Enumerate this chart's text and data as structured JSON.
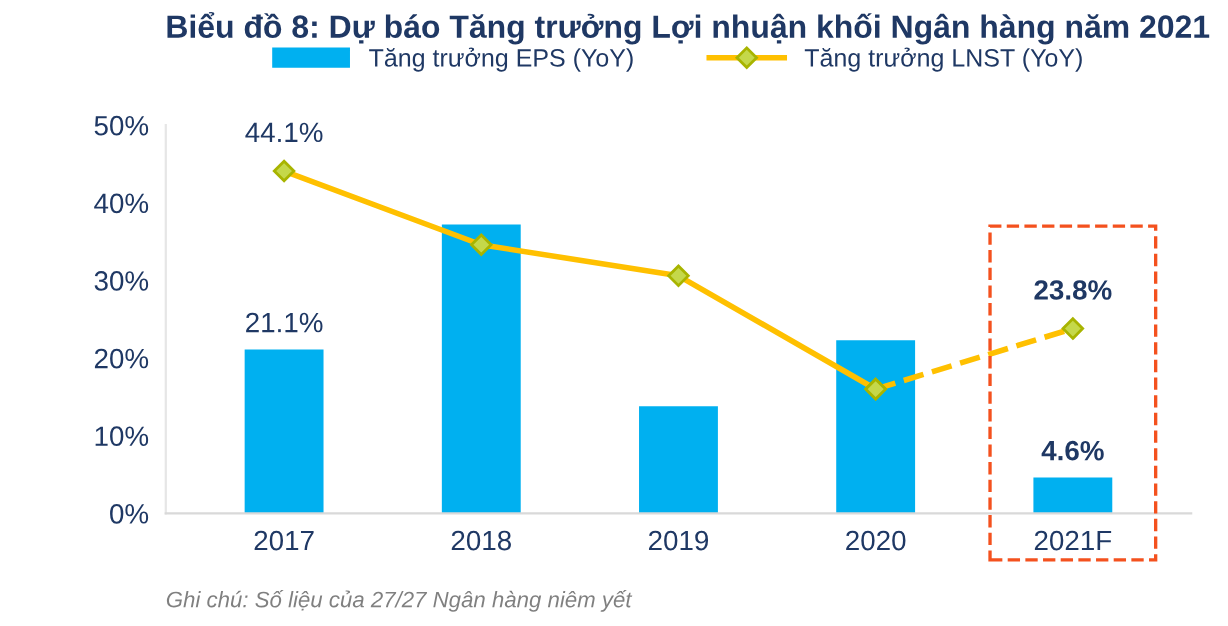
{
  "chart_data": {
    "type": "bar",
    "title": "Biểu đồ 8: Dự báo Tăng trưởng Lợi nhuận khối Ngân hàng năm 2021",
    "categories": [
      "2017",
      "2018",
      "2019",
      "2020",
      "2021F"
    ],
    "series": [
      {
        "name": "Tăng trưởng EPS (YoY)",
        "color": "#00b0f0",
        "values": [
          21.1,
          37.2,
          13.8,
          22.3,
          4.6
        ],
        "value_labels": [
          "21.1%",
          null,
          null,
          null,
          "4.6%"
        ]
      },
      {
        "name": "Tăng trưởng LNST (YoY)",
        "type": "line",
        "color": "#ffc000",
        "marker": "diamond",
        "line_style": "solid",
        "values": [
          44.1,
          34.6,
          30.6,
          16.0,
          null
        ],
        "value_labels": [
          "44.1%",
          null,
          null,
          null,
          null
        ]
      },
      {
        "type": "line",
        "color": "#ffc000",
        "marker": "diamond",
        "line_style": "dashed",
        "values": [
          null,
          null,
          null,
          16.0,
          23.8
        ],
        "value_labels": [
          null,
          null,
          null,
          null,
          "23.8%"
        ]
      }
    ],
    "ylim": [
      0,
      50
    ],
    "yticks": [
      {
        "value": 0,
        "label": "0%"
      },
      {
        "value": 10,
        "label": "10%"
      },
      {
        "value": 20,
        "label": "20%"
      },
      {
        "value": 30,
        "label": "30%"
      },
      {
        "value": 40,
        "label": "40%"
      },
      {
        "value": 50,
        "label": "50%"
      }
    ],
    "grid": false,
    "legend": "top",
    "annotations": [
      "Ghi chú: Số liệu của 27/27 Ngân hàng niêm yết"
    ]
  }
}
